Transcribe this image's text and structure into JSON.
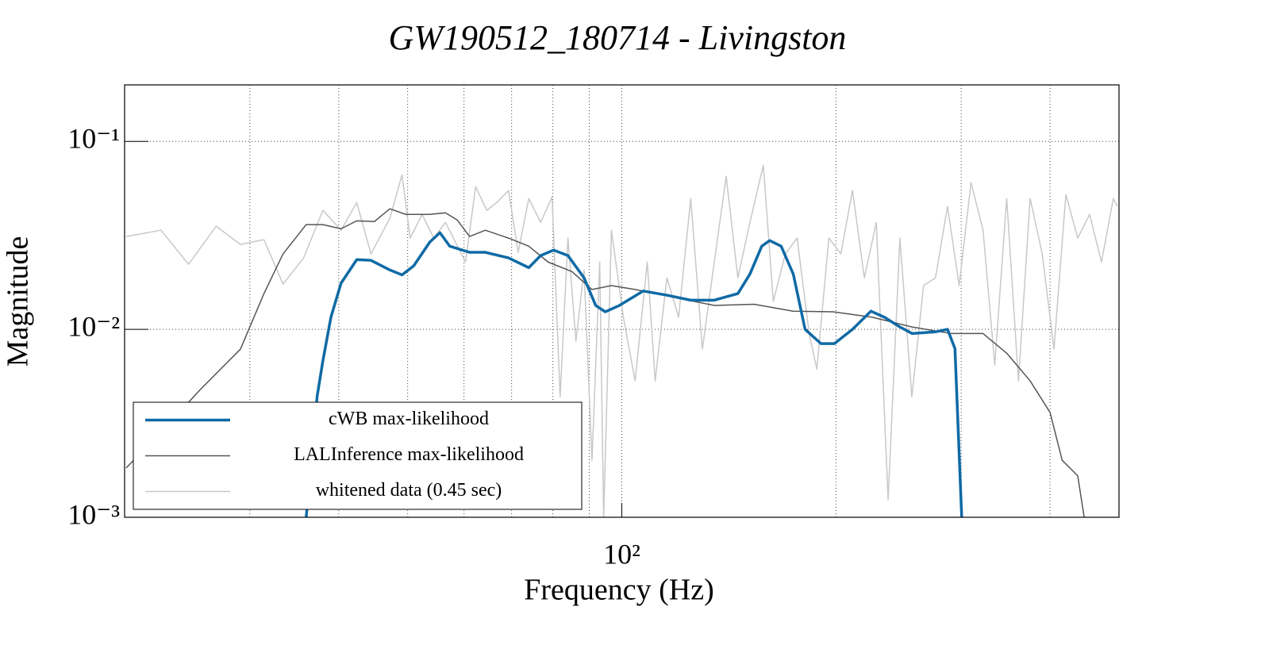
{
  "chart_data": {
    "type": "line",
    "title": "GW190512_180714 - Livingston",
    "x_label": "Frequency (Hz)",
    "y_label": "Magnitude",
    "xlog": true,
    "ylog": true,
    "grid": true,
    "legend": "lower left",
    "xlim": [
      20,
      500
    ],
    "ylim": [
      0.001,
      0.2
    ],
    "xticks": [
      {
        "value": 100,
        "label": "10²"
      }
    ],
    "xgrid": [
      30,
      40,
      50,
      60,
      70,
      80,
      90,
      100,
      200,
      300,
      400
    ],
    "yticks": [
      {
        "value": 0.001,
        "label": "10⁻³"
      },
      {
        "value": 0.01,
        "label": "10⁻²"
      },
      {
        "value": 0.1,
        "label": "10⁻¹"
      }
    ],
    "series": [
      {
        "name": "cWB max-likelihood",
        "color": "#0f6aa5",
        "width": 3.5,
        "x": [
          36.0,
          37.3,
          38.0,
          39.0,
          40.3,
          42.4,
          44.4,
          47.2,
          49.1,
          51.0,
          53.7,
          55.5,
          57.3,
          61.1,
          64.3,
          69.3,
          74.0,
          76.9,
          80.2,
          84.0,
          88.5,
          91.9,
          94.8,
          99.2,
          107.2,
          115.7,
          125,
          134.9,
          145.6,
          151.4,
          157.3,
          161.4,
          167.5,
          174.2,
          181,
          190.5,
          199,
          211,
          224,
          234,
          246,
          256,
          276,
          287,
          294,
          300.5
        ],
        "values": [
          0.001,
          0.0044,
          0.0068,
          0.0116,
          0.0176,
          0.0235,
          0.0233,
          0.0207,
          0.0195,
          0.0218,
          0.0291,
          0.0327,
          0.0277,
          0.0257,
          0.0257,
          0.024,
          0.0213,
          0.0247,
          0.0264,
          0.0247,
          0.0188,
          0.0134,
          0.0124,
          0.0134,
          0.016,
          0.0152,
          0.0143,
          0.0143,
          0.0155,
          0.0197,
          0.0277,
          0.0297,
          0.0277,
          0.0197,
          0.01,
          0.0084,
          0.0084,
          0.01,
          0.0125,
          0.0116,
          0.0103,
          0.0095,
          0.0097,
          0.01,
          0.0079,
          0.001
        ]
      },
      {
        "name": "LALInference max-likelihood",
        "color": "#555555",
        "width": 1.5,
        "x": [
          20.1,
          22.5,
          25.6,
          29.1,
          31.4,
          33.4,
          36.0,
          38.0,
          40.3,
          42.4,
          44.9,
          47.2,
          49.7,
          53.7,
          56.5,
          58.7,
          61.1,
          64.3,
          69.3,
          74.0,
          78.8,
          85.1,
          90.8,
          96.7,
          104.4,
          118.6,
          134.9,
          153.4,
          174.2,
          198.1,
          225,
          255.7,
          290.6,
          322,
          347.6,
          375,
          400,
          416,
          437.5,
          446.7
        ],
        "values": [
          0.00183,
          0.00283,
          0.00482,
          0.00785,
          0.0155,
          0.0252,
          0.0361,
          0.0361,
          0.0343,
          0.0378,
          0.0375,
          0.0438,
          0.0409,
          0.0409,
          0.0417,
          0.0382,
          0.0312,
          0.0337,
          0.0306,
          0.0277,
          0.0228,
          0.0203,
          0.0163,
          0.0171,
          0.0163,
          0.0148,
          0.0134,
          0.0136,
          0.0125,
          0.0124,
          0.0116,
          0.0103,
          0.0095,
          0.0095,
          0.00747,
          0.00532,
          0.00361,
          0.00201,
          0.00166,
          0.001
        ]
      },
      {
        "name": "whitened data (0.45 sec)",
        "color": "#c8c8c8",
        "width": 1.5,
        "x": [
          20.1,
          22.5,
          24.6,
          26.9,
          29.1,
          31.4,
          33.4,
          35.7,
          38.0,
          40.3,
          42.4,
          44.4,
          47.2,
          49.1,
          50.4,
          52.4,
          54.4,
          56.5,
          60.3,
          62.3,
          64.6,
          66.7,
          69.3,
          71.5,
          74.0,
          76.9,
          79.8,
          81.9,
          84.0,
          86.2,
          88.5,
          90.8,
          93.1,
          94.3,
          96.7,
          100.5,
          104.4,
          108.6,
          111.4,
          115.7,
          120.2,
          125,
          129.8,
          134.9,
          140.2,
          145.6,
          151.4,
          158.1,
          163.3,
          169.8,
          176.4,
          183.4,
          188,
          195.5,
          203.2,
          211,
          219.3,
          227.9,
          236.8,
          246,
          255.7,
          265.6,
          276,
          287,
          298,
          309.7,
          322,
          334.4,
          347.6,
          361.1,
          375,
          390,
          405.1,
          421,
          437.5,
          454.6,
          472.4,
          490.9,
          497.5
        ],
        "values": [
          0.0312,
          0.0337,
          0.0222,
          0.0354,
          0.0283,
          0.03,
          0.0174,
          0.024,
          0.043,
          0.0337,
          0.0473,
          0.0252,
          0.039,
          0.0665,
          0.0306,
          0.0409,
          0.0306,
          0.0371,
          0.0228,
          0.0574,
          0.043,
          0.0473,
          0.0548,
          0.0257,
          0.0497,
          0.0371,
          0.0507,
          0.00437,
          0.0306,
          0.00865,
          0.0207,
          0.00201,
          0.0228,
          0.001,
          0.0337,
          0.0116,
          0.00532,
          0.0228,
          0.00532,
          0.0188,
          0.0116,
          0.0497,
          0.00785,
          0.0228,
          0.0652,
          0.0188,
          0.0371,
          0.0747,
          0.0141,
          0.0252,
          0.0306,
          0.0095,
          0.00615,
          0.0306,
          0.0252,
          0.0548,
          0.0188,
          0.0371,
          0.00124,
          0.0306,
          0.00437,
          0.0171,
          0.0188,
          0.0451,
          0.0171,
          0.0604,
          0.0337,
          0.00646,
          0.0497,
          0.00532,
          0.0497,
          0.0252,
          0.00785,
          0.0521,
          0.0306,
          0.0409,
          0.0228,
          0.0497,
          0.0451
        ]
      }
    ]
  }
}
